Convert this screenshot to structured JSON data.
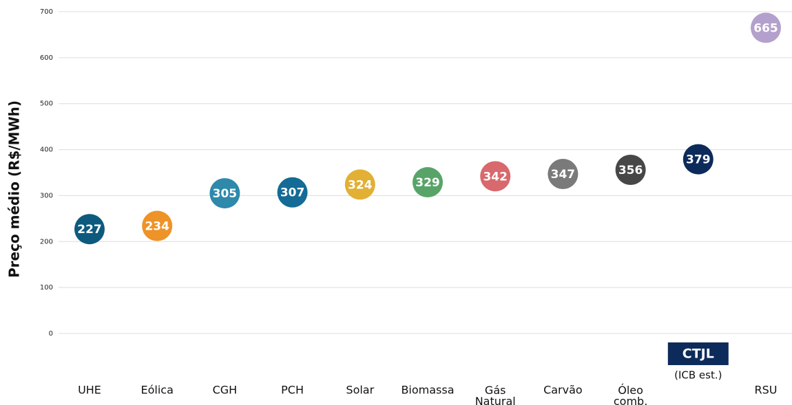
{
  "chart_data": {
    "type": "dot",
    "ylabel": "Preço médio (R$/MWh)",
    "categories": [
      "UHE",
      "Eólica",
      "CGH",
      "PCH",
      "Solar",
      "Biomassa",
      "Gás Natural",
      "Carvão",
      "Óleo comb.",
      "CTJL",
      "RSU"
    ],
    "values": [
      227,
      234,
      305,
      307,
      324,
      329,
      342,
      347,
      356,
      379,
      665
    ],
    "colors": [
      "#0e5a7e",
      "#ee9328",
      "#2e89ab",
      "#146b96",
      "#e2b034",
      "#58a468",
      "#d8696c",
      "#7a7a7a",
      "#474747",
      "#0d2b5a",
      "#b4a0cc"
    ],
    "highlight": {
      "category_index": 9,
      "color": "#0d2b5a",
      "note": "(ICB est.)"
    },
    "ylim": [
      0,
      700
    ],
    "yticks": [
      0,
      100,
      200,
      300,
      400,
      500,
      600,
      700
    ],
    "grid": true
  }
}
